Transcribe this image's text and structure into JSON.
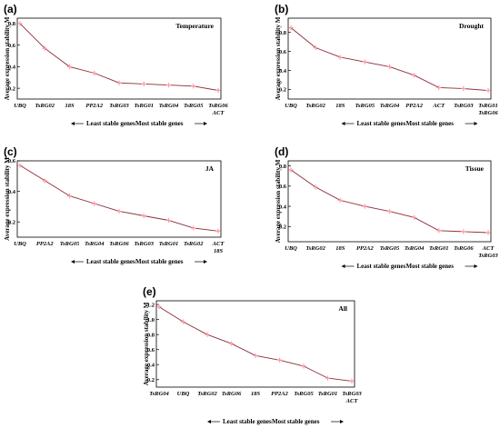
{
  "figure": {
    "colors": {
      "line": "#8c2b3a",
      "marker": "#ff9aa5",
      "axis": "#000000"
    }
  },
  "chart_data": [
    {
      "panel": "(a)",
      "type": "line",
      "condition": "Temperature",
      "ylabel": "Average expression stability M",
      "ylim": [
        0.1,
        0.85
      ],
      "yticks": [
        "0.2",
        "0.4",
        "0.6",
        "0.8"
      ],
      "categories": [
        "UBQ",
        "TsRG02",
        "18S",
        "PP2A2",
        "TsRG03",
        "TsRG01",
        "TsRG04",
        "TsRG05",
        "TsRG06 ACT"
      ],
      "values": [
        0.8,
        0.57,
        0.4,
        0.34,
        0.25,
        0.24,
        0.23,
        0.22,
        0.18
      ],
      "arrow_left": "Least stable genes",
      "arrow_right": "Most stable genes"
    },
    {
      "panel": "(b)",
      "type": "line",
      "condition": "Drought",
      "ylabel": "Average expression stability M",
      "ylim": [
        0.1,
        0.95
      ],
      "yticks": [
        "0.2",
        "0.4",
        "0.6",
        "0.8"
      ],
      "categories": [
        "UBQ",
        "TsRG02",
        "18S",
        "TsRG05",
        "TsRG04",
        "PP2A2",
        "ACT",
        "TsRG03",
        "TsRG01 TsRG06"
      ],
      "values": [
        0.85,
        0.64,
        0.54,
        0.49,
        0.44,
        0.35,
        0.22,
        0.21,
        0.19
      ],
      "arrow_left": "Least stable genes",
      "arrow_right": "Most stable genes"
    },
    {
      "panel": "(c)",
      "type": "line",
      "condition": "JA",
      "ylabel": "Average expression stability M",
      "ylim": [
        0.1,
        0.6
      ],
      "yticks": [
        "0.2",
        "0.4",
        "0.6"
      ],
      "categories": [
        "UBQ",
        "PP2A2",
        "TsRG05",
        "TsRG04",
        "TsRG06",
        "TsRG03",
        "TsRG01",
        "TsRG02",
        "ACT 18S"
      ],
      "values": [
        0.57,
        0.47,
        0.37,
        0.32,
        0.27,
        0.24,
        0.21,
        0.16,
        0.14
      ],
      "arrow_left": "Least stable genes",
      "arrow_right": "Most stable genes"
    },
    {
      "panel": "(d)",
      "type": "line",
      "condition": "Tissue",
      "ylabel": "Average expression stability M",
      "ylim": [
        0.05,
        0.85
      ],
      "yticks": [
        "0.2",
        "0.4",
        "0.6",
        "0.8"
      ],
      "categories": [
        "UBQ",
        "TsRG02",
        "18S",
        "PP2A2",
        "TsRG05",
        "TsRG04",
        "TsRG01",
        "TsRG06",
        "ACT TsRG03"
      ],
      "values": [
        0.76,
        0.59,
        0.46,
        0.4,
        0.35,
        0.29,
        0.16,
        0.15,
        0.14
      ],
      "arrow_left": "Least stable genes",
      "arrow_right": "Most stable genes"
    },
    {
      "panel": "(e)",
      "type": "line",
      "condition": "All",
      "ylabel": "Average expression stability M",
      "ylim": [
        0.1,
        1.25
      ],
      "yticks": [
        "0.2",
        "0.4",
        "0.6",
        "0.8",
        "1.0",
        "1.2"
      ],
      "categories": [
        "TsRG04",
        "UBQ",
        "TsRG02",
        "TsRG06",
        "18S",
        "PP2A2",
        "TsRG05",
        "TsRG01",
        "TsRG03 ACT"
      ],
      "values": [
        1.17,
        0.97,
        0.8,
        0.68,
        0.52,
        0.46,
        0.38,
        0.22,
        0.18
      ],
      "arrow_left": "Least stable genes",
      "arrow_right": "Most stable genes"
    }
  ]
}
